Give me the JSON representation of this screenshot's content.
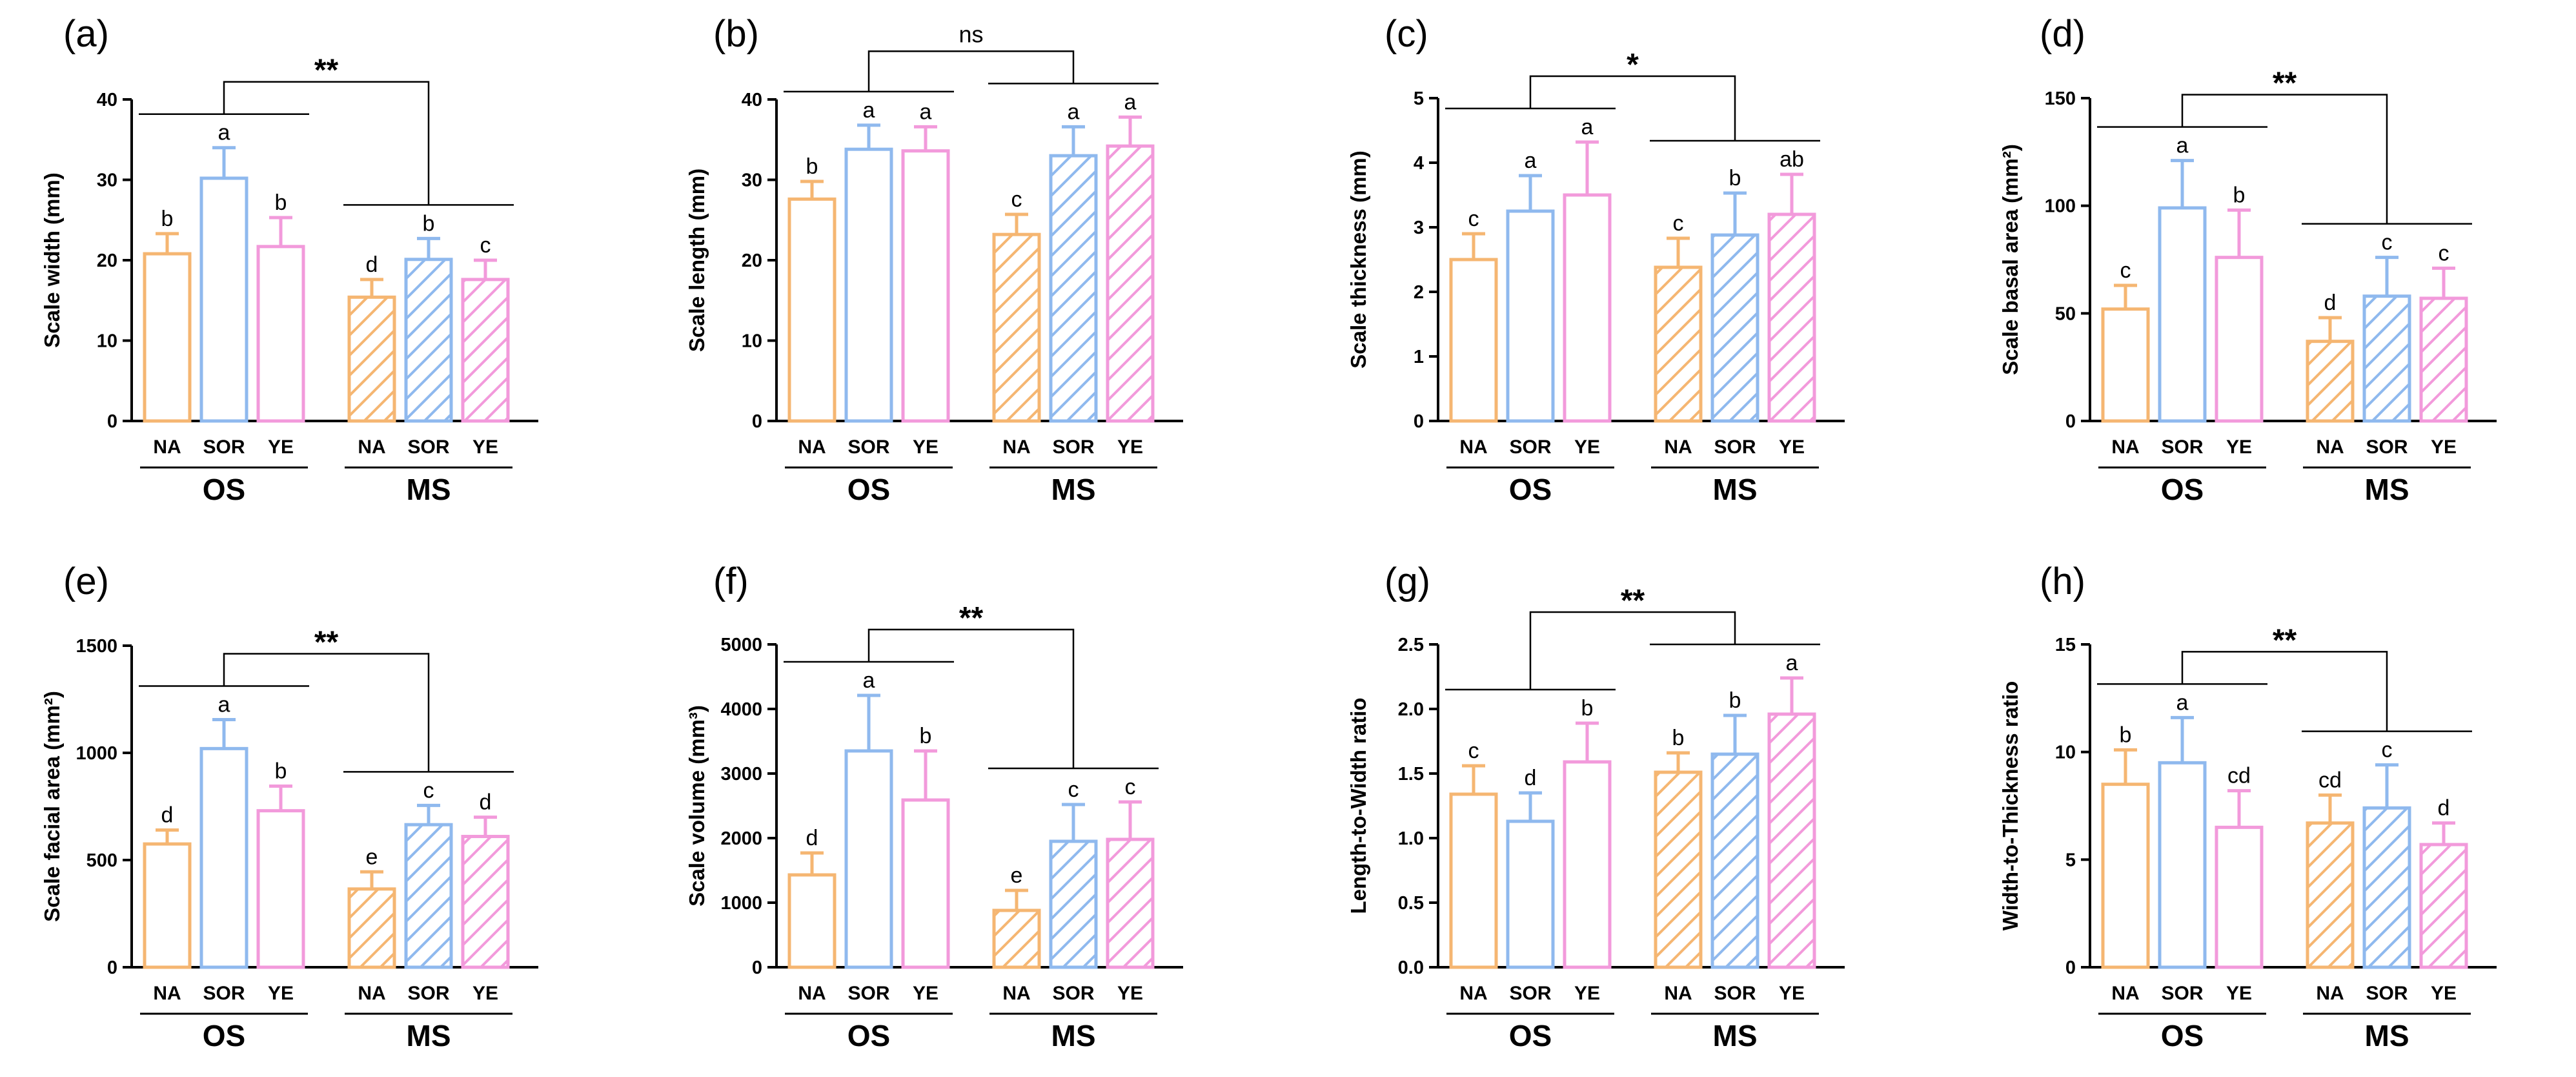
{
  "colors": {
    "NA": "#f5b672",
    "SOR": "#8fb9ee",
    "YE": "#f29adb",
    "axis": "#000000"
  },
  "groups": [
    "OS",
    "MS"
  ],
  "categories": [
    "NA",
    "SOR",
    "YE",
    "NA",
    "SOR",
    "YE"
  ],
  "chart_data": [
    {
      "type": "bar",
      "panel": "(a)",
      "ylabel": "Scale width (mm)",
      "ylim": [
        0,
        40
      ],
      "yticks": [
        0,
        10,
        20,
        30,
        40
      ],
      "categories": [
        "NA",
        "SOR",
        "YE",
        "NA",
        "SOR",
        "YE"
      ],
      "groups": [
        "OS",
        "MS"
      ],
      "values": [
        20.8,
        30.2,
        21.7,
        15.4,
        20.1,
        17.6
      ],
      "errors": [
        2.5,
        3.8,
        3.6,
        2.2,
        2.6,
        2.4
      ],
      "letters": [
        "b",
        "a",
        "b",
        "d",
        "b",
        "c"
      ],
      "significance": "**"
    },
    {
      "type": "bar",
      "panel": "(b)",
      "ylabel": "Scale length (mm)",
      "ylim": [
        0,
        40
      ],
      "yticks": [
        0,
        10,
        20,
        30,
        40
      ],
      "categories": [
        "NA",
        "SOR",
        "YE",
        "NA",
        "SOR",
        "YE"
      ],
      "groups": [
        "OS",
        "MS"
      ],
      "values": [
        27.6,
        33.8,
        33.6,
        23.2,
        33.0,
        34.2
      ],
      "errors": [
        2.2,
        3.0,
        3.0,
        2.5,
        3.6,
        3.6
      ],
      "letters": [
        "b",
        "a",
        "a",
        "c",
        "a",
        "a"
      ],
      "significance": "ns"
    },
    {
      "type": "bar",
      "panel": "(c)",
      "ylabel": "Scale thickness (mm)",
      "ylim": [
        0,
        5
      ],
      "yticks": [
        0,
        1,
        2,
        3,
        4,
        5
      ],
      "categories": [
        "NA",
        "SOR",
        "YE",
        "NA",
        "SOR",
        "YE"
      ],
      "groups": [
        "OS",
        "MS"
      ],
      "values": [
        2.5,
        3.25,
        3.5,
        2.38,
        2.88,
        3.2
      ],
      "errors": [
        0.4,
        0.55,
        0.82,
        0.45,
        0.65,
        0.62
      ],
      "letters": [
        "c",
        "a",
        "a",
        "c",
        "b",
        "ab"
      ],
      "significance": "*"
    },
    {
      "type": "bar",
      "panel": "(d)",
      "ylabel": "Scale basal area (mm²)",
      "ylim": [
        0,
        150
      ],
      "yticks": [
        0,
        50,
        100,
        150
      ],
      "categories": [
        "NA",
        "SOR",
        "YE",
        "NA",
        "SOR",
        "YE"
      ],
      "groups": [
        "OS",
        "MS"
      ],
      "values": [
        52,
        99,
        76,
        37,
        58,
        57
      ],
      "errors": [
        11,
        22,
        22,
        11,
        18,
        14
      ],
      "letters": [
        "c",
        "a",
        "b",
        "d",
        "c",
        "c"
      ],
      "significance": "**"
    },
    {
      "type": "bar",
      "panel": "(e)",
      "ylabel": "Scale facial area (mm²)",
      "ylim": [
        0,
        1500
      ],
      "yticks": [
        0,
        500,
        1000,
        1500
      ],
      "categories": [
        "NA",
        "SOR",
        "YE",
        "NA",
        "SOR",
        "YE"
      ],
      "groups": [
        "OS",
        "MS"
      ],
      "values": [
        575,
        1020,
        730,
        365,
        665,
        610
      ],
      "errors": [
        65,
        135,
        115,
        80,
        90,
        90
      ],
      "letters": [
        "d",
        "a",
        "b",
        "e",
        "c",
        "d"
      ],
      "significance": "**"
    },
    {
      "type": "bar",
      "panel": "(f)",
      "ylabel": "Scale volume (mm³)",
      "ylim": [
        0,
        5000
      ],
      "yticks": [
        0,
        1000,
        2000,
        3000,
        4000,
        5000
      ],
      "categories": [
        "NA",
        "SOR",
        "YE",
        "NA",
        "SOR",
        "YE"
      ],
      "groups": [
        "OS",
        "MS"
      ],
      "values": [
        1430,
        3350,
        2590,
        880,
        1950,
        1980
      ],
      "errors": [
        340,
        860,
        760,
        310,
        570,
        580
      ],
      "letters": [
        "d",
        "a",
        "b",
        "e",
        "c",
        "c"
      ],
      "significance": "**"
    },
    {
      "type": "bar",
      "panel": "(g)",
      "ylabel": "Length-to-Width ratio",
      "ylim": [
        0,
        2.5
      ],
      "yticks": [
        "0.0",
        "0.5",
        "1.0",
        "1.5",
        "2.0",
        "2.5"
      ],
      "categories": [
        "NA",
        "SOR",
        "YE",
        "NA",
        "SOR",
        "YE"
      ],
      "groups": [
        "OS",
        "MS"
      ],
      "values": [
        1.34,
        1.13,
        1.59,
        1.51,
        1.65,
        1.96
      ],
      "errors": [
        0.22,
        0.22,
        0.3,
        0.15,
        0.3,
        0.28
      ],
      "letters": [
        "c",
        "d",
        "b",
        "b",
        "b",
        "a"
      ],
      "significance": "**"
    },
    {
      "type": "bar",
      "panel": "(h)",
      "ylabel": "Width-to-Thickness ratio",
      "ylim": [
        0,
        15
      ],
      "yticks": [
        0,
        5,
        10,
        15
      ],
      "categories": [
        "NA",
        "SOR",
        "YE",
        "NA",
        "SOR",
        "YE"
      ],
      "groups": [
        "OS",
        "MS"
      ],
      "values": [
        8.5,
        9.5,
        6.5,
        6.7,
        7.4,
        5.7
      ],
      "errors": [
        1.6,
        2.1,
        1.7,
        1.3,
        2.0,
        1.0
      ],
      "letters": [
        "b",
        "a",
        "cd",
        "cd",
        "c",
        "d"
      ],
      "significance": "**"
    }
  ]
}
